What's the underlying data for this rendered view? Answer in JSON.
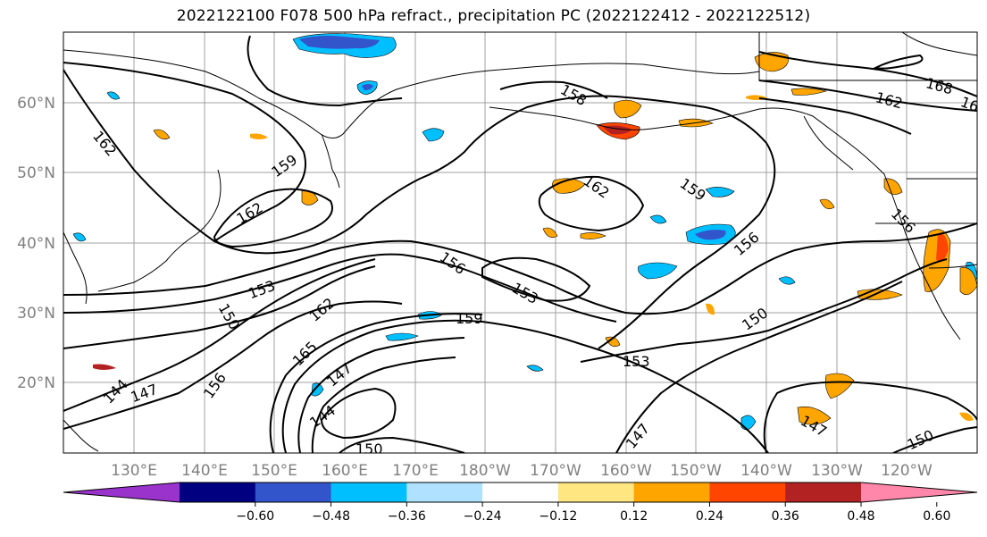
{
  "title": "2022122100 F078 500 hPa refract., precipitation PC (2022122412 - 2022122512)",
  "lon_labels": [
    "130°E",
    "140°E",
    "150°E",
    "160°E",
    "170°E",
    "180°W",
    "170°W",
    "160°W",
    "150°W",
    "140°W",
    "130°W",
    "120°W"
  ],
  "lat_labels": [
    "60°N",
    "50°N",
    "40°N",
    "30°N",
    "20°N"
  ],
  "colorbar": {
    "ticks": [
      "−0.60",
      "−0.48",
      "−0.36",
      "−0.24",
      "−0.12",
      "0.12",
      "0.24",
      "0.36",
      "0.48",
      "0.60"
    ],
    "colors": [
      "#9933cc",
      "#000080",
      "#3355cc",
      "#00bfff",
      "#b0e2ff",
      "#ffffff",
      "#ffe680",
      "#ffa500",
      "#ff4500",
      "#b22222",
      "#ff88aa"
    ]
  },
  "contour_labels": [
    "162",
    "159",
    "162",
    "153",
    "150",
    "156",
    "147",
    "144",
    "162",
    "165",
    "147",
    "144",
    "150",
    "156",
    "153",
    "159",
    "162",
    "159",
    "156",
    "153",
    "147",
    "150",
    "156",
    "150",
    "147",
    "150",
    "162",
    "168",
    "16",
    "158"
  ],
  "colors": {
    "grid": "#a0a0a0",
    "contour": "#000000",
    "frame": "#000000"
  }
}
